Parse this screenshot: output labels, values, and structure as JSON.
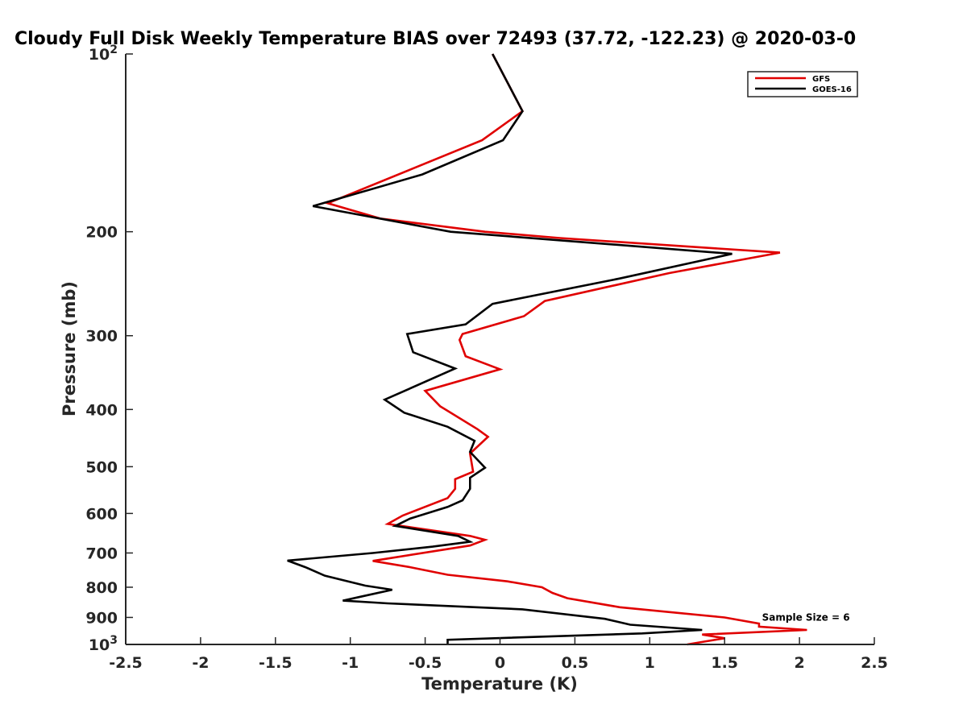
{
  "chart_data": {
    "type": "line",
    "title": "Cloudy Full Disk Weekly Temperature BIAS over 72493 (37.72, -122.23) @ 2020-03-0",
    "xlabel": "Temperature (K)",
    "ylabel": "Pressure (mb)",
    "xlim": [
      -2.5,
      2.5
    ],
    "ylim": [
      100,
      1000
    ],
    "yscale": "log",
    "y_reversed": true,
    "x_ticks": [
      -2.5,
      -2,
      -1.5,
      -1,
      -0.5,
      0,
      0.5,
      1,
      1.5,
      2,
      2.5
    ],
    "x_tick_labels": [
      "-2.5",
      "-2",
      "-1.5",
      "-1",
      "-0.5",
      "0",
      "0.5",
      "1",
      "1.5",
      "2",
      "2.5"
    ],
    "y_ticks": [
      {
        "value": 100,
        "base": "10",
        "exp": "2"
      },
      {
        "value": 200,
        "label": "200"
      },
      {
        "value": 300,
        "label": "300"
      },
      {
        "value": 400,
        "label": "400"
      },
      {
        "value": 500,
        "label": "500"
      },
      {
        "value": 600,
        "label": "600"
      },
      {
        "value": 700,
        "label": "700"
      },
      {
        "value": 800,
        "label": "800"
      },
      {
        "value": 900,
        "label": "900"
      },
      {
        "value": 1000,
        "base": "10",
        "exp": "3"
      }
    ],
    "grid": false,
    "legend": {
      "position": "top-right",
      "entries": [
        "GFS",
        "GOES-16"
      ]
    },
    "series": [
      {
        "name": "GFS",
        "color": "#e00000",
        "points": [
          {
            "x": -0.05,
            "y": 100
          },
          {
            "x": 0.15,
            "y": 125
          },
          {
            "x": -0.12,
            "y": 140
          },
          {
            "x": -0.6,
            "y": 157
          },
          {
            "x": -1.15,
            "y": 179
          },
          {
            "x": -0.8,
            "y": 190
          },
          {
            "x": -0.1,
            "y": 200
          },
          {
            "x": 0.4,
            "y": 205
          },
          {
            "x": 1.87,
            "y": 217
          },
          {
            "x": 1.13,
            "y": 235
          },
          {
            "x": 0.3,
            "y": 262
          },
          {
            "x": 0.16,
            "y": 278
          },
          {
            "x": -0.25,
            "y": 298
          },
          {
            "x": -0.27,
            "y": 305
          },
          {
            "x": -0.23,
            "y": 325
          },
          {
            "x": 0.0,
            "y": 342
          },
          {
            "x": -0.5,
            "y": 372
          },
          {
            "x": -0.4,
            "y": 395
          },
          {
            "x": -0.15,
            "y": 432
          },
          {
            "x": -0.08,
            "y": 445
          },
          {
            "x": -0.2,
            "y": 475
          },
          {
            "x": -0.18,
            "y": 510
          },
          {
            "x": -0.3,
            "y": 525
          },
          {
            "x": -0.3,
            "y": 545
          },
          {
            "x": -0.35,
            "y": 565
          },
          {
            "x": -0.65,
            "y": 605
          },
          {
            "x": -0.75,
            "y": 625
          },
          {
            "x": -0.2,
            "y": 655
          },
          {
            "x": -0.1,
            "y": 665
          },
          {
            "x": -0.2,
            "y": 680
          },
          {
            "x": -0.85,
            "y": 722
          },
          {
            "x": -0.6,
            "y": 740
          },
          {
            "x": -0.35,
            "y": 762
          },
          {
            "x": 0.05,
            "y": 782
          },
          {
            "x": 0.28,
            "y": 800
          },
          {
            "x": 0.35,
            "y": 818
          },
          {
            "x": 0.45,
            "y": 835
          },
          {
            "x": 0.8,
            "y": 865
          },
          {
            "x": 1.5,
            "y": 900
          },
          {
            "x": 1.73,
            "y": 922
          },
          {
            "x": 1.73,
            "y": 933
          },
          {
            "x": 2.05,
            "y": 945
          },
          {
            "x": 1.35,
            "y": 962
          },
          {
            "x": 1.5,
            "y": 976
          },
          {
            "x": 1.25,
            "y": 1000
          }
        ]
      },
      {
        "name": "GOES-16",
        "color": "#000000",
        "points": [
          {
            "x": -0.05,
            "y": 100
          },
          {
            "x": 0.15,
            "y": 125
          },
          {
            "x": 0.02,
            "y": 140
          },
          {
            "x": -0.52,
            "y": 160
          },
          {
            "x": -1.25,
            "y": 181
          },
          {
            "x": -0.33,
            "y": 200
          },
          {
            "x": 1.55,
            "y": 218
          },
          {
            "x": 0.8,
            "y": 240
          },
          {
            "x": -0.05,
            "y": 265
          },
          {
            "x": -0.23,
            "y": 287
          },
          {
            "x": -0.62,
            "y": 298
          },
          {
            "x": -0.58,
            "y": 320
          },
          {
            "x": -0.3,
            "y": 341
          },
          {
            "x": -0.77,
            "y": 385
          },
          {
            "x": -0.64,
            "y": 405
          },
          {
            "x": -0.35,
            "y": 428
          },
          {
            "x": -0.17,
            "y": 452
          },
          {
            "x": -0.2,
            "y": 472
          },
          {
            "x": -0.1,
            "y": 502
          },
          {
            "x": -0.2,
            "y": 522
          },
          {
            "x": -0.2,
            "y": 545
          },
          {
            "x": -0.25,
            "y": 570
          },
          {
            "x": -0.35,
            "y": 585
          },
          {
            "x": -0.6,
            "y": 612
          },
          {
            "x": -0.7,
            "y": 630
          },
          {
            "x": -0.28,
            "y": 655
          },
          {
            "x": -0.2,
            "y": 670
          },
          {
            "x": -0.45,
            "y": 683
          },
          {
            "x": -0.85,
            "y": 700
          },
          {
            "x": -1.42,
            "y": 721
          },
          {
            "x": -1.3,
            "y": 740
          },
          {
            "x": -1.17,
            "y": 765
          },
          {
            "x": -0.9,
            "y": 795
          },
          {
            "x": -0.72,
            "y": 808
          },
          {
            "x": -0.93,
            "y": 830
          },
          {
            "x": -1.05,
            "y": 843
          },
          {
            "x": -0.75,
            "y": 852
          },
          {
            "x": 0.15,
            "y": 872
          },
          {
            "x": 0.7,
            "y": 905
          },
          {
            "x": 0.87,
            "y": 926
          },
          {
            "x": 1.35,
            "y": 945
          },
          {
            "x": 0.95,
            "y": 958
          },
          {
            "x": -0.35,
            "y": 982
          },
          {
            "x": -0.35,
            "y": 1000
          }
        ]
      }
    ],
    "annotations": [
      {
        "text": "Sample Size = 6",
        "x": 1.75,
        "y": 900
      }
    ]
  }
}
